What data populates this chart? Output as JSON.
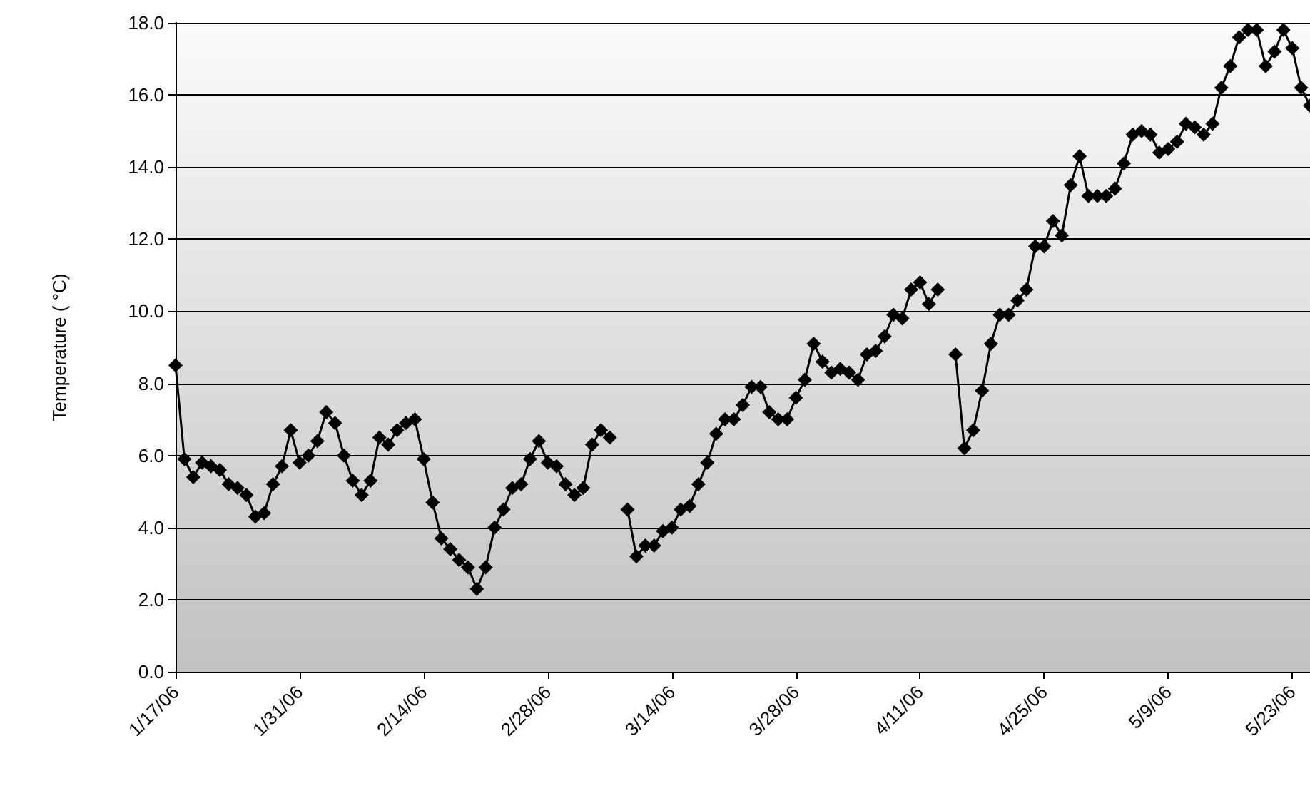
{
  "chart_data": {
    "type": "line",
    "ylabel": "Temperature ( °C)",
    "xlim": [
      "--01-17",
      "--05-25"
    ],
    "ylim": [
      0,
      18
    ],
    "xticks": [
      {
        "value": "--01-17",
        "label": "1/17/06"
      },
      {
        "value": "--01-31",
        "label": "1/31/06"
      },
      {
        "value": "--02-14",
        "label": "2/14/06"
      },
      {
        "value": "--02-28",
        "label": "2/28/06"
      },
      {
        "value": "--03-14",
        "label": "3/14/06"
      },
      {
        "value": "--03-28",
        "label": "3/28/06"
      },
      {
        "value": "--04-11",
        "label": "4/11/06"
      },
      {
        "value": "--04-25",
        "label": "4/25/06"
      },
      {
        "value": "--05-09",
        "label": "5/9/06"
      },
      {
        "value": "--05-23",
        "label": "5/23/06"
      }
    ],
    "yticks": [
      {
        "value": 0,
        "label": "0.0"
      },
      {
        "value": 2,
        "label": "2.0"
      },
      {
        "value": 4,
        "label": "4.0"
      },
      {
        "value": 6,
        "label": "6.0"
      },
      {
        "value": 8,
        "label": "8.0"
      },
      {
        "value": 10,
        "label": "10.0"
      },
      {
        "value": 12,
        "label": "12.0"
      },
      {
        "value": 14,
        "label": "14.0"
      },
      {
        "value": 16,
        "label": "16.0"
      },
      {
        "value": 18,
        "label": "18.0"
      }
    ],
    "grid": "y",
    "marker": "diamond",
    "line_style": "solid",
    "series": [
      {
        "color": "#000000",
        "x": [
          "--01-17",
          "--01-18",
          "--01-19",
          "--01-20",
          "--01-21",
          "--01-22",
          "--01-23",
          "--01-24",
          "--01-25",
          "--01-26",
          "--01-27",
          "--01-28",
          "--01-29",
          "--01-30",
          "--01-31",
          "--02-01",
          "--02-02",
          "--02-03",
          "--02-04",
          "--02-05",
          "--02-06",
          "--02-07",
          "--02-08",
          "--02-09",
          "--02-10",
          "--02-11",
          "--02-12",
          "--02-13",
          "--02-14",
          "--02-15",
          "--02-16",
          "--02-17",
          "--02-18",
          "--02-19",
          "--02-20",
          "--02-21",
          "--02-22",
          "--02-23",
          "--02-24",
          "--02-25",
          "--02-26",
          "--02-27",
          "--02-28",
          "--03-01",
          "--03-02",
          "--03-03",
          "--03-04",
          "--03-05",
          "--03-06",
          "--03-07",
          "--03-08",
          "--03-09",
          "--03-10",
          "--03-11",
          "--03-12",
          "--03-13",
          "--03-14",
          "--03-15",
          "--03-16",
          "--03-17",
          "--03-18",
          "--03-19",
          "--03-20",
          "--03-21",
          "--03-22",
          "--03-23",
          "--03-24",
          "--03-25",
          "--03-26",
          "--03-27",
          "--03-28",
          "--03-29",
          "--03-30",
          "--03-31",
          "--04-01",
          "--04-02",
          "--04-03",
          "--04-04",
          "--04-05",
          "--04-06",
          "--04-07",
          "--04-08",
          "--04-09",
          "--04-10",
          "--04-11",
          "--04-12",
          "--04-13",
          "--04-14",
          "--04-15",
          "--04-16",
          "--04-17",
          "--04-18",
          "--04-19",
          "--04-20",
          "--04-21",
          "--04-22",
          "--04-23",
          "--04-24",
          "--04-25",
          "--04-26",
          "--04-27",
          "--04-28",
          "--04-29",
          "--04-30",
          "--05-01",
          "--05-02",
          "--05-03",
          "--05-04",
          "--05-05",
          "--05-06",
          "--05-07",
          "--05-08",
          "--05-09",
          "--05-10",
          "--05-11",
          "--05-12",
          "--05-13",
          "--05-14",
          "--05-15",
          "--05-16",
          "--05-17",
          "--05-18",
          "--05-19",
          "--05-20",
          "--05-21",
          "--05-22",
          "--05-23",
          "--05-24",
          "--05-25"
        ],
        "values": [
          8.5,
          5.9,
          5.4,
          5.8,
          5.7,
          5.6,
          5.2,
          5.1,
          4.9,
          4.3,
          4.4,
          5.2,
          5.7,
          6.7,
          5.8,
          6.0,
          6.4,
          7.2,
          6.9,
          6.0,
          5.3,
          4.9,
          5.3,
          6.5,
          6.3,
          6.7,
          6.9,
          7.0,
          5.9,
          4.7,
          3.7,
          3.4,
          3.1,
          2.9,
          2.3,
          2.9,
          4.0,
          4.5,
          5.1,
          5.2,
          5.9,
          6.4,
          5.8,
          5.7,
          5.2,
          4.9,
          5.1,
          6.3,
          6.7,
          6.5,
          null,
          4.5,
          3.2,
          3.5,
          3.5,
          3.9,
          4.0,
          4.5,
          4.6,
          5.2,
          5.8,
          6.6,
          7.0,
          7.0,
          7.4,
          7.9,
          7.9,
          7.2,
          7.0,
          7.0,
          7.6,
          8.1,
          9.1,
          8.6,
          8.3,
          8.4,
          8.3,
          8.1,
          8.8,
          8.9,
          9.3,
          9.9,
          9.8,
          10.6,
          10.8,
          10.2,
          10.6,
          null,
          8.8,
          6.2,
          6.7,
          7.8,
          9.1,
          9.9,
          9.9,
          10.3,
          10.6,
          11.8,
          11.8,
          12.5,
          12.1,
          13.5,
          14.3,
          13.2,
          13.2,
          13.2,
          13.4,
          14.1,
          14.9,
          15.0,
          14.9,
          14.4,
          14.5,
          14.7,
          15.2,
          15.1,
          14.9,
          15.2,
          16.2,
          16.8,
          17.6,
          17.8,
          17.8,
          16.8,
          17.2,
          17.8,
          17.3,
          16.2,
          15.7
        ]
      }
    ]
  }
}
